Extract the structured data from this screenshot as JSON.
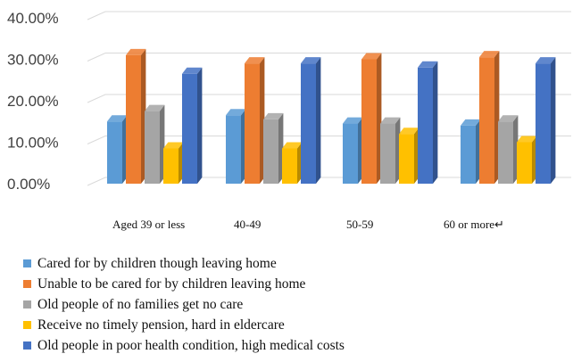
{
  "chart_data": {
    "type": "bar",
    "title": "",
    "xlabel": "",
    "ylabel": "",
    "categories": [
      "Aged 39 or less",
      "40-49",
      "50-59",
      "60 or more↵"
    ],
    "ylim": [
      0,
      40
    ],
    "yticks": [
      "0.00%",
      "10.00%",
      "20.00%",
      "30.00%",
      "40.00%"
    ],
    "grid": true,
    "legend_position": "bottom",
    "series": [
      {
        "name": "Cared for by children though leaving home",
        "color": "#5b9bd5",
        "values": [
          15.0,
          16.5,
          14.5,
          14.0
        ]
      },
      {
        "name": "Unable to be cared for by children leaving home",
        "color": "#ed7d31",
        "values": [
          31.0,
          29.0,
          30.0,
          30.5
        ]
      },
      {
        "name": "Old people of no families get no care",
        "color": "#a5a5a5",
        "values": [
          17.5,
          15.5,
          14.5,
          15.0
        ]
      },
      {
        "name": "Receive no timely pension, hard in eldercare",
        "color": "#ffc000",
        "values": [
          8.5,
          8.5,
          12.0,
          10.0
        ]
      },
      {
        "name": "Old people in poor health condition, high medical costs",
        "color": "#4472c4",
        "values": [
          26.5,
          29.0,
          28.0,
          29.0
        ]
      }
    ]
  }
}
